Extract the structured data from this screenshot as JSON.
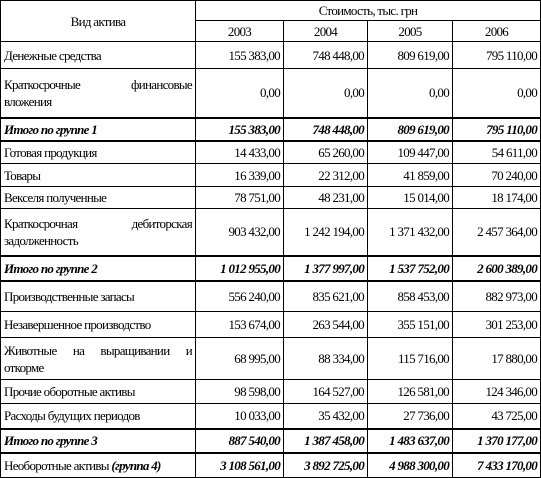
{
  "table": {
    "header": {
      "label_col": "Вид актива",
      "group": "Стоимость, тыс. грн",
      "years": [
        "2003",
        "2004",
        "2005",
        "2006"
      ]
    },
    "rows": [
      {
        "label": "Денежные средства",
        "values": [
          "155 383,00",
          "748 448,00",
          "809 619,00",
          "795 110,00"
        ],
        "bold": false
      },
      {
        "label": "Краткосрочные финансовые вложения",
        "values": [
          "0,00",
          "0,00",
          "0,00",
          "0,00"
        ],
        "bold": false
      },
      {
        "label": "Итого по группе 1",
        "values": [
          "155 383,00",
          "748 448,00",
          "809 619,00",
          "795 110,00"
        ],
        "bold": true
      },
      {
        "label": "Готовая продукция",
        "values": [
          "14 433,00",
          "65 260,00",
          "109 447,00",
          "54 611,00"
        ],
        "bold": false
      },
      {
        "label": "Товары",
        "values": [
          "16 339,00",
          "22 312,00",
          "41 859,00",
          "70 240,00"
        ],
        "bold": false
      },
      {
        "label": "Векселя полученные",
        "values": [
          "78 751,00",
          "48 231,00",
          "15 014,00",
          "18 174,00"
        ],
        "bold": false
      },
      {
        "label": "Краткосрочная дебиторская задолженность",
        "values": [
          "903 432,00",
          "1 242 194,00",
          "1 371 432,00",
          "2 457 364,00"
        ],
        "bold": false
      },
      {
        "label": "Итого по группе 2",
        "values": [
          "1 012 955,00",
          "1 377 997,00",
          "1 537 752,00",
          "2 600 389,00"
        ],
        "bold": true
      },
      {
        "label": "Производственные запасы",
        "values": [
          "556 240,00",
          "835 621,00",
          "858 453,00",
          "882 973,00"
        ],
        "bold": false
      },
      {
        "label": "Незавершенное производство",
        "values": [
          "153 674,00",
          "263 544,00",
          "355 151,00",
          "301 253,00"
        ],
        "bold": false
      },
      {
        "label": "Животные на выращивании и откорме",
        "values": [
          "68 995,00",
          "88 334,00",
          "115 716,00",
          "17 880,00"
        ],
        "bold": false
      },
      {
        "label": "Прочие оборотные активы",
        "values": [
          "98 598,00",
          "164 527,00",
          "126 581,00",
          "124 346,00"
        ],
        "bold": false
      },
      {
        "label": "Расходы будущих периодов",
        "values": [
          "10 033,00",
          "35 432,00",
          "27 736,00",
          "43 725,00"
        ],
        "bold": false
      },
      {
        "label": "Итого по группе 3",
        "values": [
          "887 540,00",
          "1 387 458,00",
          "1 483 637,00",
          "1 370 177,00"
        ],
        "bold": true
      },
      {
        "label": "Необоротные активы",
        "label_emphasis": "(группа 4)",
        "values": [
          "3 108 561,00",
          "3 892 725,00",
          "4 988 300,00",
          "7 433 170,00"
        ],
        "bold": true
      }
    ]
  }
}
